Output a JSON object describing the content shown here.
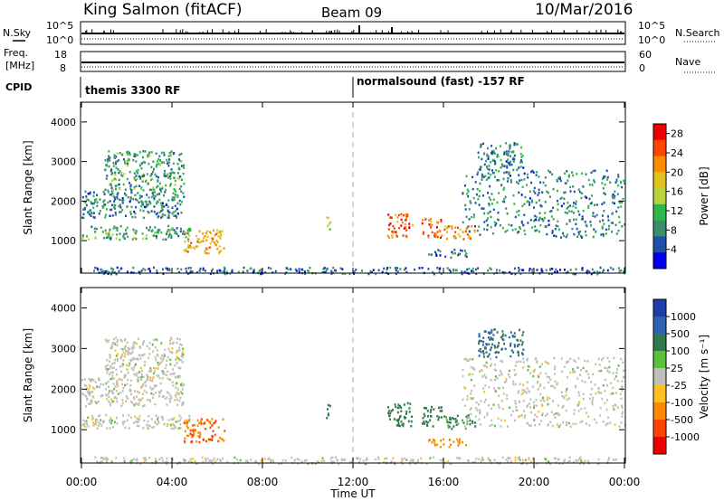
{
  "header": {
    "station": "King Salmon (fitACF)",
    "beam": "Beam 09",
    "date": "10/Mar/2016"
  },
  "strips": {
    "nsky_label": "N.Sky",
    "nsearch_label": "N.Search",
    "noise_ticks_left": [
      "10^5",
      "10^0"
    ],
    "noise_ticks_right": [
      "10^5",
      "10^0"
    ],
    "freq_label_1": "Freq.",
    "freq_label_2": "[MHz]",
    "freq_ticks": [
      "18",
      "8"
    ],
    "nave_label": "Nave",
    "nave_ticks": [
      "60",
      "0"
    ],
    "cpid_label": "CPID",
    "cpid_segments": [
      {
        "name": "themis 3300 RF",
        "start_hour": 0
      },
      {
        "name": "normalsound (fast) -157 RF",
        "start_hour": 12
      }
    ]
  },
  "colors": {
    "power_scale": [
      "#0000ee",
      "#1f4fa6",
      "#3a8f6a",
      "#2fb84a",
      "#b8d43a",
      "#e0c21e",
      "#ff8c00",
      "#ff4500",
      "#ee0000"
    ],
    "velocity_scale": [
      "#1b3fa8",
      "#3060b0",
      "#2f7a4a",
      "#5bc03a",
      "#c0c0b8",
      "#ffc020",
      "#ff8800",
      "#ff4400",
      "#ee0000"
    ]
  },
  "chart_data": [
    {
      "type": "heatmap",
      "panel": "power",
      "xlabel": "Time UT",
      "ylabel": "Slant Range [km]",
      "xlim": [
        0,
        24
      ],
      "ylim": [
        180,
        4500
      ],
      "xticks": [
        "00:00",
        "04:00",
        "08:00",
        "12:00",
        "16:00",
        "20:00",
        "00:00"
      ],
      "yticks": [
        1000,
        2000,
        3000,
        4000
      ],
      "colorbar": {
        "label": "Power [dB]",
        "ticks": [
          4,
          8,
          12,
          16,
          20,
          24,
          28
        ],
        "range": [
          0,
          30
        ]
      },
      "echo_regions": [
        {
          "t": [
            0.0,
            4.8
          ],
          "r": [
            1050,
            1400
          ],
          "value": 10
        },
        {
          "t": [
            0.0,
            4.5
          ],
          "r": [
            1600,
            2300
          ],
          "value": 8
        },
        {
          "t": [
            1.0,
            4.5
          ],
          "r": [
            2300,
            3300
          ],
          "value": 10
        },
        {
          "t": [
            4.5,
            6.3
          ],
          "r": [
            700,
            1300
          ],
          "value": 20
        },
        {
          "t": [
            10.8,
            11.0
          ],
          "r": [
            1300,
            1700
          ],
          "value": 15
        },
        {
          "t": [
            13.5,
            14.6
          ],
          "r": [
            1100,
            1700
          ],
          "value": 24
        },
        {
          "t": [
            15.0,
            15.9
          ],
          "r": [
            1100,
            1600
          ],
          "value": 24
        },
        {
          "t": [
            16.0,
            17.4
          ],
          "r": [
            1050,
            1400
          ],
          "value": 20
        },
        {
          "t": [
            15.2,
            17.0
          ],
          "r": [
            600,
            800
          ],
          "value": 6
        },
        {
          "t": [
            16.8,
            24.0
          ],
          "r": [
            1100,
            2800
          ],
          "value": 8
        },
        {
          "t": [
            17.5,
            19.5
          ],
          "r": [
            2800,
            3500
          ],
          "value": 8
        },
        {
          "t": [
            0.5,
            24.0
          ],
          "r": [
            180,
            350
          ],
          "value": 6
        }
      ]
    },
    {
      "type": "heatmap",
      "panel": "velocity",
      "xlabel": "Time UT",
      "ylabel": "Slant Range [km]",
      "xlim": [
        0,
        24
      ],
      "ylim": [
        180,
        4500
      ],
      "xticks": [
        "00:00",
        "04:00",
        "08:00",
        "12:00",
        "16:00",
        "20:00",
        "00:00"
      ],
      "yticks": [
        1000,
        2000,
        3000,
        4000
      ],
      "colorbar": {
        "label": "Velocity [m s⁻¹]",
        "ticks": [
          1000,
          500,
          100,
          25,
          -25,
          -100,
          -500,
          -1000
        ]
      },
      "echo_regions": [
        {
          "t": [
            0.0,
            4.8
          ],
          "r": [
            1050,
            1400
          ],
          "value": 0
        },
        {
          "t": [
            0.0,
            4.5
          ],
          "r": [
            1600,
            2300
          ],
          "value": 0
        },
        {
          "t": [
            1.0,
            4.5
          ],
          "r": [
            2300,
            3300
          ],
          "value": 0
        },
        {
          "t": [
            4.5,
            6.3
          ],
          "r": [
            700,
            1300
          ],
          "value": -300
        },
        {
          "t": [
            10.8,
            11.0
          ],
          "r": [
            1300,
            1700
          ],
          "value": 200
        },
        {
          "t": [
            13.5,
            14.6
          ],
          "r": [
            1100,
            1700
          ],
          "value": 120
        },
        {
          "t": [
            15.0,
            15.9
          ],
          "r": [
            1100,
            1600
          ],
          "value": 120
        },
        {
          "t": [
            16.0,
            17.4
          ],
          "r": [
            1050,
            1400
          ],
          "value": 80
        },
        {
          "t": [
            15.2,
            17.0
          ],
          "r": [
            600,
            800
          ],
          "value": -150
        },
        {
          "t": [
            16.8,
            24.0
          ],
          "r": [
            1100,
            2800
          ],
          "value": 0
        },
        {
          "t": [
            17.5,
            19.5
          ],
          "r": [
            2800,
            3500
          ],
          "value": 300
        },
        {
          "t": [
            0.5,
            24.0
          ],
          "r": [
            180,
            350
          ],
          "value": 0
        }
      ]
    }
  ]
}
